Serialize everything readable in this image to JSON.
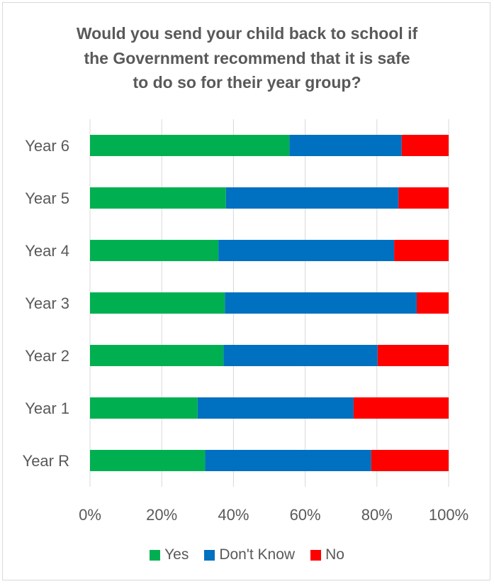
{
  "chart_data": {
    "type": "bar",
    "orientation": "horizontal",
    "stacked": "percent",
    "title_lines": [
      "Would you send your child back to school if",
      "the Government recommend that it is safe",
      "to do so for their year group?"
    ],
    "categories": [
      "Year 6",
      "Year 5",
      "Year 4",
      "Year 3",
      "Year 2",
      "Year 1",
      "Year R"
    ],
    "series": [
      {
        "name": "Yes",
        "color": "#00b050",
        "values": [
          55.6,
          37.9,
          35.8,
          37.6,
          37.2,
          30.0,
          32.1
        ]
      },
      {
        "name": "Don't Know",
        "color": "#0070c0",
        "values": [
          31.3,
          48.1,
          49.0,
          53.5,
          43.0,
          43.5,
          46.3
        ]
      },
      {
        "name": "No",
        "color": "#ff0000",
        "values": [
          13.1,
          14.0,
          15.2,
          8.9,
          19.8,
          26.5,
          21.6
        ]
      }
    ],
    "x_ticks": [
      "0%",
      "20%",
      "40%",
      "60%",
      "80%",
      "100%"
    ],
    "xlim": [
      0,
      100
    ],
    "grid": true,
    "legend_position": "bottom"
  }
}
